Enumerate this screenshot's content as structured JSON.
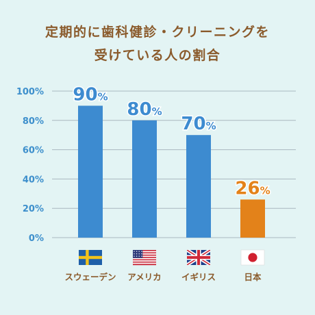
{
  "title_lines": [
    "定期的に歯科健診・クリーニングを",
    "受けている人の割合"
  ],
  "colors": {
    "background": "#e3f4f4",
    "title": "#8a5a2b",
    "axis_text": "#3d8fcc",
    "grid": "#a9b7bf",
    "bar_blue": "#3d8bd0",
    "bar_orange": "#e3821a",
    "label_blue": "#3d8bd0",
    "label_orange": "#e3821a",
    "country_text": "#8a5a2b"
  },
  "chart_data": {
    "type": "bar",
    "title": "定期的に歯科健診・クリーニングを受けている人の割合",
    "categories": [
      "スウェーデン",
      "アメリカ",
      "イギリス",
      "日本"
    ],
    "values": [
      90,
      80,
      70,
      26
    ],
    "value_labels": [
      "90",
      "80",
      "70",
      "26"
    ],
    "value_suffix": "%",
    "flags": [
      "sweden-flag",
      "usa-flag",
      "uk-flag",
      "japan-flag"
    ],
    "highlight_index": 3,
    "y_ticks": [
      "0%",
      "20%",
      "40%",
      "60%",
      "80%",
      "100%"
    ],
    "ylim": [
      0,
      100
    ],
    "grid": true,
    "xlabel": "",
    "ylabel": ""
  }
}
